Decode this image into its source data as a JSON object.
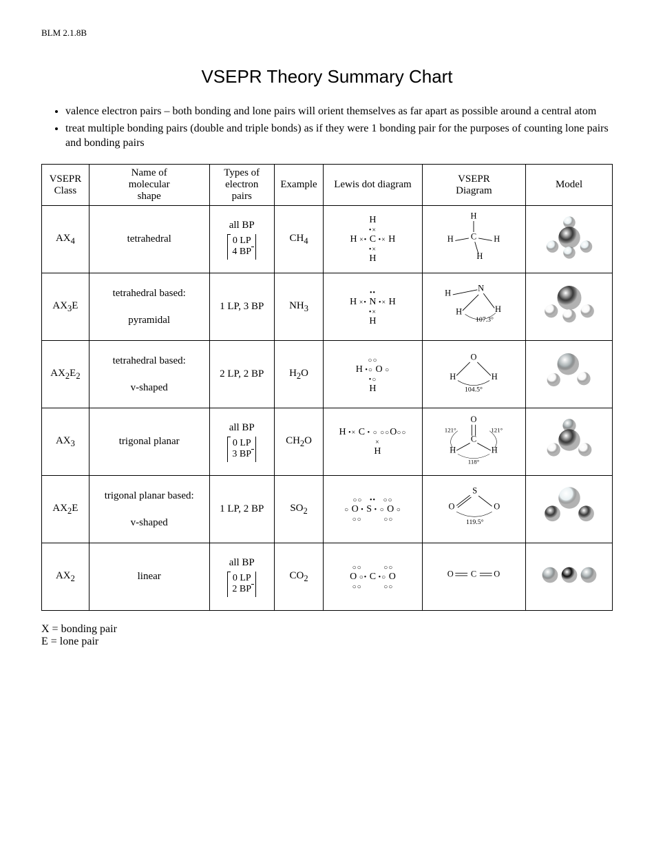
{
  "header_code": "BLM 2.1.8B",
  "title": "VSEPR Theory Summary Chart",
  "notes": [
    "valence electron pairs – both bonding and lone pairs will orient themselves as far apart as possible around a central atom",
    "treat multiple bonding pairs (double and triple bonds) as if they were 1 bonding pair for the purposes of counting lone pairs and bonding pairs"
  ],
  "columns": [
    "VSEPR Class",
    "Name of molecular shape",
    "Types of electron pairs",
    "Example",
    "Lewis dot diagram",
    "VSEPR Diagram",
    "Model"
  ],
  "rows": [
    {
      "class_html": "AX<sub>4</sub>",
      "shape": "tetrahedral",
      "pairs_top": "all BP",
      "pairs_bracket": [
        "0 LP",
        "4 BP"
      ],
      "example_html": "CH<sub>4</sub>",
      "diagram_labels": {
        "c": "C",
        "t": "H",
        "l": "H",
        "r": "H",
        "b": "H"
      },
      "model": "tetra",
      "lewis": "ch4"
    },
    {
      "class_html": "AX<sub>3</sub>E",
      "shape": "tetrahedral based:<br><br>pyramidal",
      "pairs_top": "1 LP, 3 BP",
      "pairs_bracket": null,
      "example_html": "NH<sub>3</sub>",
      "diagram_labels": {
        "c": "N",
        "l": "H",
        "r": "H",
        "f": "H",
        "angle": "107.3°"
      },
      "model": "pyramidal",
      "lewis": "nh3"
    },
    {
      "class_html": "AX<sub>2</sub>E<sub>2</sub>",
      "shape": "tetrahedral based:<br><br>v-shaped",
      "pairs_top": "2 LP, 2 BP",
      "pairs_bracket": null,
      "example_html": "H<sub>2</sub>O",
      "diagram_labels": {
        "c": "O",
        "l": "H",
        "r": "H",
        "angle": "104.5°"
      },
      "model": "bent",
      "lewis": "h2o"
    },
    {
      "class_html": "AX<sub>3</sub>",
      "shape": "trigonal planar",
      "pairs_top": "all BP",
      "pairs_bracket": [
        "0 LP",
        "3 BP"
      ],
      "example_html": "CH<sub>2</sub>O",
      "diagram_labels": {
        "c": "C",
        "t": "O",
        "l": "H",
        "r": "H",
        "a1": "121°",
        "a2": "121°",
        "a3": "118°"
      },
      "model": "trigonal",
      "lewis": "ch2o"
    },
    {
      "class_html": "AX<sub>2</sub>E",
      "shape": "trigonal planar based:<br><br>v-shaped",
      "pairs_top": "1 LP, 2 BP",
      "pairs_bracket": null,
      "example_html": "SO<sub>2</sub>",
      "diagram_labels": {
        "c": "S",
        "l": "O",
        "r": "O",
        "angle": "119.5°"
      },
      "model": "bent2",
      "lewis": "so2"
    },
    {
      "class_html": "AX<sub>2</sub>",
      "shape": "linear",
      "pairs_top": "all BP",
      "pairs_bracket": [
        "0 LP",
        "2 BP"
      ],
      "example_html": "CO<sub>2</sub>",
      "diagram_labels": {
        "c": "C",
        "l": "O",
        "r": "O"
      },
      "model": "linear",
      "lewis": "co2"
    }
  ],
  "legend": [
    "X = bonding pair",
    "E = lone pair"
  ],
  "colors": {
    "dark_atom": "#3a3a3a",
    "light_atom": "#e8f0f2",
    "mid_atom": "#a8b0b2",
    "white_atom": "#f8f8f8",
    "shine": "#ffffff"
  }
}
